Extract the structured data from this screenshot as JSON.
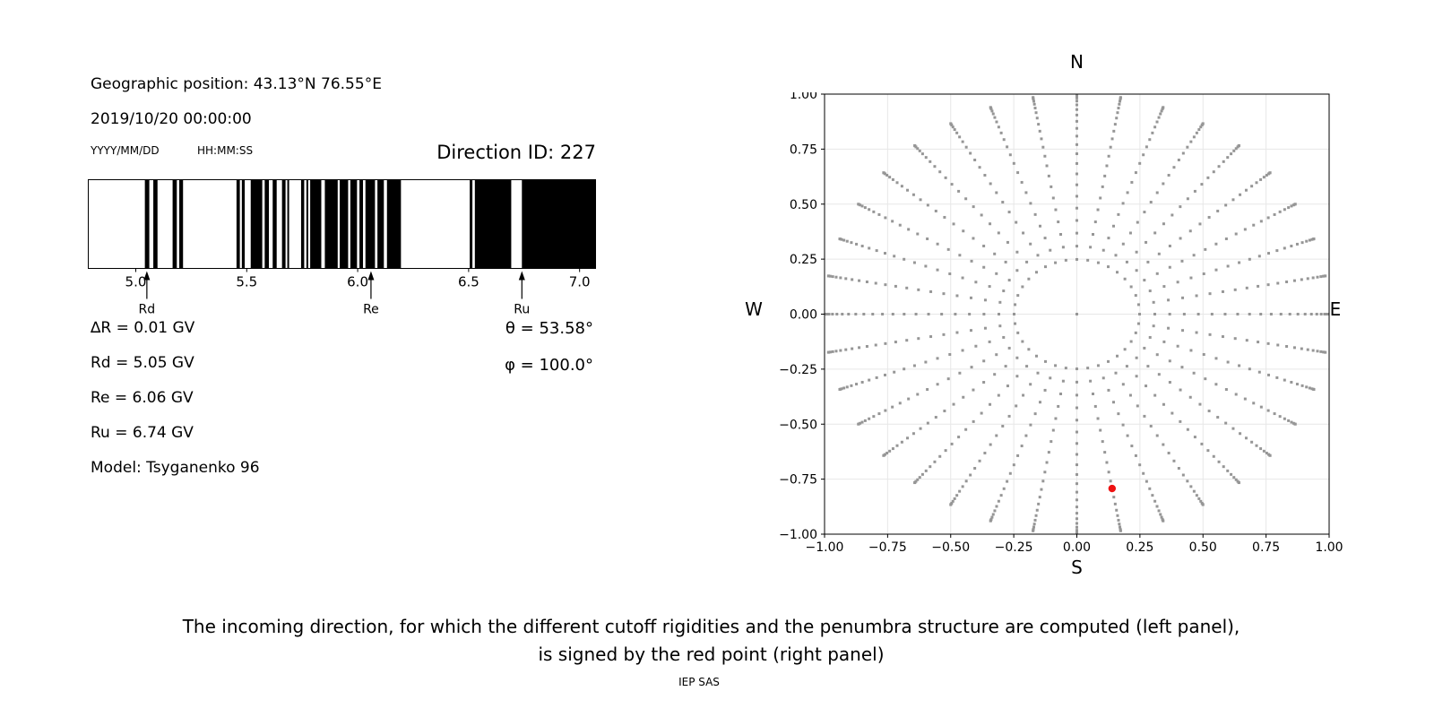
{
  "info_panel": {
    "geographic_position": "Geographic position: 43.13°N 76.55°E",
    "datetime": "2019/10/20 00:00:00",
    "date_format_hint": "YYYY/MM/DD",
    "time_format_hint": "HH:MM:SS",
    "direction_id": "Direction ID: 227",
    "values": {
      "delta_R": "∆R = 0.01 GV",
      "Rd": "Rd = 5.05 GV",
      "Re": "Re = 6.06 GV",
      "Ru": "Ru = 6.74 GV",
      "model": "Model: Tsyganenko 96",
      "theta": "θ = 53.58°",
      "phi": "φ = 100.0°"
    }
  },
  "caption": {
    "line1": "The incoming direction, for which the different cutoff rigidities and the penumbra structure are computed (left panel),",
    "line2": "is signed by the red point (right panel)",
    "credit": "IEP SAS"
  },
  "chart_data": [
    {
      "id": "penumbra-barcode",
      "type": "barcode",
      "description": "Penumbra structure: black bands = allowed rigidities (GV), white = forbidden",
      "xlim": [
        4.786,
        7.072
      ],
      "bar_color": "#000000",
      "xticks": [
        {
          "v": 5.0,
          "label": "5.0"
        },
        {
          "v": 5.5,
          "label": "5.5"
        },
        {
          "v": 6.0,
          "label": "6.0"
        },
        {
          "v": 6.5,
          "label": "6.5"
        },
        {
          "v": 7.0,
          "label": "7.0"
        }
      ],
      "black_intervals_GV": [
        [
          5.041,
          5.061
        ],
        [
          5.079,
          5.098
        ],
        [
          5.166,
          5.185
        ],
        [
          5.196,
          5.213
        ],
        [
          5.454,
          5.469
        ],
        [
          5.478,
          5.491
        ],
        [
          5.518,
          5.57
        ],
        [
          5.581,
          5.6
        ],
        [
          5.617,
          5.635
        ],
        [
          5.659,
          5.675
        ],
        [
          5.683,
          5.691
        ],
        [
          5.745,
          5.759
        ],
        [
          5.769,
          5.777
        ],
        [
          5.786,
          5.836
        ],
        [
          5.852,
          5.91
        ],
        [
          5.919,
          5.957
        ],
        [
          5.967,
          5.997
        ],
        [
          6.008,
          6.024
        ],
        [
          6.035,
          6.078
        ],
        [
          6.089,
          6.118
        ],
        [
          6.132,
          6.195
        ],
        [
          6.505,
          6.517
        ],
        [
          6.528,
          6.692
        ],
        [
          6.74,
          7.072
        ]
      ],
      "markers": [
        {
          "label": "Rd",
          "x": 5.05
        },
        {
          "label": "Re",
          "x": 6.06
        },
        {
          "label": "Ru",
          "x": 6.74
        }
      ]
    },
    {
      "id": "direction-map",
      "type": "scatter",
      "description": "Sky map of computed incoming directions; radius = sin(zenith), rays every 10° azimuth",
      "xlim": [
        -1,
        1
      ],
      "ylim": [
        -1,
        1
      ],
      "grid": true,
      "grid_color": "#e7e7e7",
      "dot_color": "#969696",
      "compass": {
        "top": "N",
        "bottom": "S",
        "left": "W",
        "right": "E"
      },
      "xticks": [
        {
          "v": -1.0,
          "label": "−1.00"
        },
        {
          "v": -0.75,
          "label": "−0.75"
        },
        {
          "v": -0.5,
          "label": "−0.50"
        },
        {
          "v": -0.25,
          "label": "−0.25"
        },
        {
          "v": 0.0,
          "label": "0.00"
        },
        {
          "v": 0.25,
          "label": "0.25"
        },
        {
          "v": 0.5,
          "label": "0.50"
        },
        {
          "v": 0.75,
          "label": "0.75"
        },
        {
          "v": 1.0,
          "label": "1.00"
        }
      ],
      "yticks": [
        {
          "v": -1.0,
          "label": "−1.00"
        },
        {
          "v": -0.75,
          "label": "−0.75"
        },
        {
          "v": -0.5,
          "label": "−0.50"
        },
        {
          "v": -0.25,
          "label": "−0.25"
        },
        {
          "v": 0.0,
          "label": "0.00"
        },
        {
          "v": 0.25,
          "label": "0.25"
        },
        {
          "v": 0.5,
          "label": "0.50"
        },
        {
          "v": 0.75,
          "label": "0.75"
        },
        {
          "v": 1.0,
          "label": "1.00"
        }
      ],
      "dots_generator": {
        "azimuth_deg": {
          "start": 0,
          "step": 10,
          "count": 36
        },
        "zenith_deg": {
          "start": 14.4,
          "step": 3.6,
          "count": 22
        },
        "radius_mapping": "sin(zenith)",
        "include_center_dot": true
      },
      "selected_direction": {
        "x": 0.1397,
        "y": -0.7925,
        "color": "#ee1111",
        "theta_deg": 53.58,
        "phi_deg": 100.0,
        "marker": "circle"
      }
    }
  ]
}
